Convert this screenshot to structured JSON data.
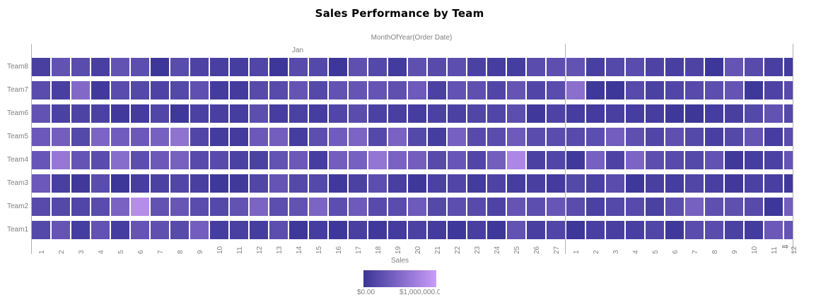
{
  "chart_data": {
    "type": "heatmap",
    "title": "Sales Performance by Team",
    "xlabel": "MonthOfYear(Order Date)",
    "ylabel": "",
    "x_groups": [
      {
        "label": "Jan",
        "days": [
          "1",
          "2",
          "3",
          "4",
          "5",
          "6",
          "7",
          "8",
          "9",
          "10",
          "11",
          "12",
          "13",
          "14",
          "15",
          "16",
          "17",
          "18",
          "19",
          "20",
          "21",
          "22",
          "23",
          "24",
          "25",
          "26",
          "27"
        ]
      },
      {
        "label": "",
        "days": [
          "1",
          "2",
          "3",
          "4",
          "5",
          "6",
          "7",
          "8",
          "9",
          "10",
          "11",
          "12"
        ]
      }
    ],
    "rows": [
      "Team8",
      "Team7",
      "Team6",
      "Team5",
      "Team4",
      "Team3",
      "Team2",
      "Team1"
    ],
    "legend": {
      "title": "Sales",
      "min_label": "$0.00",
      "max_label": "$1,000,000.0",
      "min_color": "#3a3597",
      "max_color": "#c99cf8",
      "range": [
        0,
        1000000
      ]
    },
    "values_normalized_note": "0 = $0.00 (dark), 1 = $1,000,000 (light)",
    "values": [
      [
        0.1,
        0.28,
        0.22,
        0.1,
        0.28,
        0.24,
        0.02,
        0.22,
        0.14,
        0.1,
        0.08,
        0.16,
        0.02,
        0.2,
        0.18,
        0.02,
        0.26,
        0.18,
        0.06,
        0.26,
        0.2,
        0.24,
        0.12,
        0.08,
        0.08,
        0.22,
        0.25,
        0.28,
        0.1,
        0.18,
        0.22,
        0.14,
        0.1,
        0.14,
        0.02,
        0.3,
        0.2,
        0.1,
        0.06
      ],
      [
        0.22,
        0.1,
        0.5,
        0.05,
        0.22,
        0.18,
        0.14,
        0.18,
        0.26,
        0.06,
        0.06,
        0.2,
        0.2,
        0.3,
        0.18,
        0.28,
        0.3,
        0.3,
        0.26,
        0.36,
        0.12,
        0.28,
        0.26,
        0.16,
        0.3,
        0.16,
        0.22,
        0.56,
        0.03,
        0.02,
        0.2,
        0.12,
        0.16,
        0.2,
        0.24,
        0.3,
        0.03,
        0.14,
        0.2
      ],
      [
        0.28,
        0.12,
        0.14,
        0.12,
        0.05,
        0.06,
        0.16,
        0.03,
        0.12,
        0.1,
        0.08,
        0.24,
        0.08,
        0.12,
        0.08,
        0.16,
        0.22,
        0.12,
        0.1,
        0.08,
        0.12,
        0.12,
        0.16,
        0.16,
        0.24,
        0.04,
        0.14,
        0.08,
        0.06,
        0.1,
        0.08,
        0.08,
        0.03,
        0.02,
        0.08,
        0.1,
        0.18,
        0.28,
        0.18
      ],
      [
        0.34,
        0.4,
        0.18,
        0.46,
        0.38,
        0.34,
        0.42,
        0.6,
        0.16,
        0.06,
        0.06,
        0.34,
        0.4,
        0.08,
        0.24,
        0.38,
        0.46,
        0.18,
        0.44,
        0.18,
        0.08,
        0.42,
        0.2,
        0.22,
        0.36,
        0.22,
        0.22,
        0.2,
        0.24,
        0.4,
        0.26,
        0.16,
        0.26,
        0.18,
        0.1,
        0.18,
        0.3,
        0.08,
        0.22
      ],
      [
        0.32,
        0.64,
        0.3,
        0.22,
        0.54,
        0.24,
        0.34,
        0.42,
        0.2,
        0.2,
        0.12,
        0.12,
        0.28,
        0.34,
        0.08,
        0.4,
        0.42,
        0.62,
        0.44,
        0.4,
        0.2,
        0.32,
        0.16,
        0.4,
        0.8,
        0.12,
        0.16,
        0.04,
        0.42,
        0.14,
        0.46,
        0.24,
        0.2,
        0.18,
        0.28,
        0.04,
        0.08,
        0.12,
        0.3
      ],
      [
        0.34,
        0.1,
        0.04,
        0.22,
        0.02,
        0.08,
        0.12,
        0.16,
        0.1,
        0.03,
        0.04,
        0.16,
        0.3,
        0.18,
        0.18,
        0.04,
        0.12,
        0.24,
        0.1,
        0.03,
        0.12,
        0.16,
        0.06,
        0.14,
        0.08,
        0.1,
        0.06,
        0.18,
        0.12,
        0.22,
        0.03,
        0.1,
        0.08,
        0.16,
        0.1,
        0.04,
        0.12,
        0.1,
        0.04
      ],
      [
        0.2,
        0.18,
        0.16,
        0.22,
        0.44,
        0.86,
        0.28,
        0.32,
        0.22,
        0.18,
        0.28,
        0.46,
        0.24,
        0.28,
        0.46,
        0.24,
        0.36,
        0.2,
        0.22,
        0.36,
        0.18,
        0.24,
        0.2,
        0.14,
        0.3,
        0.24,
        0.32,
        0.22,
        0.12,
        0.18,
        0.2,
        0.12,
        0.24,
        0.42,
        0.26,
        0.26,
        0.2,
        0.02,
        0.4
      ],
      [
        0.18,
        0.3,
        0.08,
        0.28,
        0.08,
        0.3,
        0.26,
        0.2,
        0.4,
        0.08,
        0.1,
        0.08,
        0.24,
        0.03,
        0.08,
        0.03,
        0.1,
        0.04,
        0.06,
        0.12,
        0.06,
        0.03,
        0.1,
        0.03,
        0.28,
        0.1,
        0.16,
        0.02,
        0.1,
        0.1,
        0.1,
        0.16,
        0.04,
        0.22,
        0.22,
        0.12,
        0.06,
        0.34,
        0.3
      ]
    ]
  },
  "header": {
    "title": "Sales Performance by Team",
    "axis_title": "MonthOfYear(Order Date)"
  },
  "legend": {
    "title": "Sales",
    "min": "$0.00",
    "max": "$1,000,000.0"
  },
  "scroll_icon": "⇨"
}
